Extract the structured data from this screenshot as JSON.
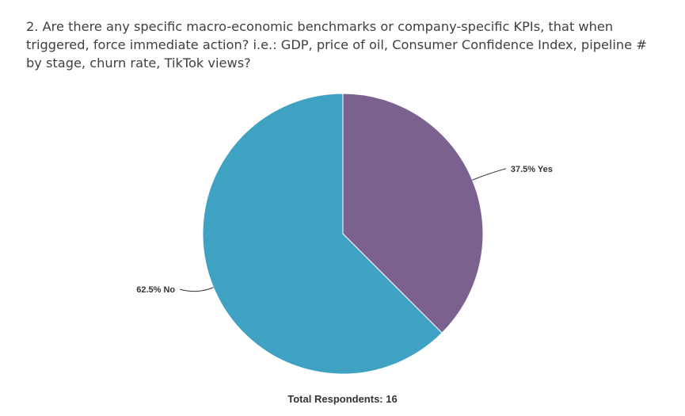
{
  "question": {
    "text": "2. Are there any specific macro-economic benchmarks or company-specific KPIs, that when triggered, force immediate action?  i.e.: GDP, price of oil, Consumer Confidence Index, pipeline # by stage, churn rate, TikTok views?"
  },
  "chart_data": {
    "type": "pie",
    "slices": [
      {
        "label": "37.5% Yes",
        "category": "Yes",
        "value": 37.5,
        "color": "#7b6190"
      },
      {
        "label": "62.5% No",
        "category": "No",
        "value": 62.5,
        "color": "#40a2c3"
      }
    ],
    "start_angle_deg": 0,
    "direction": "clockwise"
  },
  "footer": {
    "total_label": "Total Respondents: 16"
  }
}
